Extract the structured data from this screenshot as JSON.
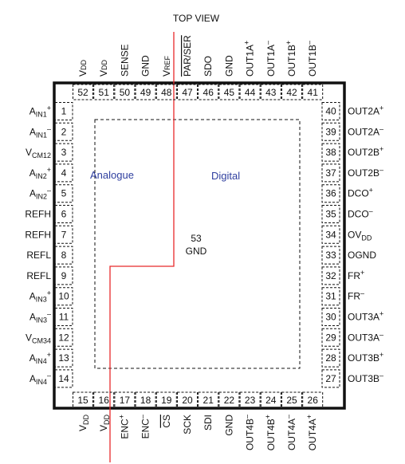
{
  "title": "TOP VIEW",
  "zones": {
    "analogue": "Analogue",
    "digital": "Digital",
    "zone_color": "#2f3f9f",
    "divider_color": "#e8292b"
  },
  "center_pad": {
    "number": "53",
    "name": "GND"
  },
  "pins": {
    "left": [
      {
        "n": "1",
        "base": "A",
        "sub": "IN1",
        "sup": "+"
      },
      {
        "n": "2",
        "base": "A",
        "sub": "IN1",
        "sup": "–"
      },
      {
        "n": "3",
        "base": "V",
        "sub": "CM12",
        "sup": ""
      },
      {
        "n": "4",
        "base": "A",
        "sub": "IN2",
        "sup": "+"
      },
      {
        "n": "5",
        "base": "A",
        "sub": "IN2",
        "sup": "–"
      },
      {
        "n": "6",
        "base": "REFH",
        "sub": "",
        "sup": ""
      },
      {
        "n": "7",
        "base": "REFH",
        "sub": "",
        "sup": ""
      },
      {
        "n": "8",
        "base": "REFL",
        "sub": "",
        "sup": ""
      },
      {
        "n": "9",
        "base": "REFL",
        "sub": "",
        "sup": ""
      },
      {
        "n": "10",
        "base": "A",
        "sub": "IN3",
        "sup": "+"
      },
      {
        "n": "11",
        "base": "A",
        "sub": "IN3",
        "sup": "–"
      },
      {
        "n": "12",
        "base": "V",
        "sub": "CM34",
        "sup": ""
      },
      {
        "n": "13",
        "base": "A",
        "sub": "IN4",
        "sup": "+"
      },
      {
        "n": "14",
        "base": "A",
        "sub": "IN4",
        "sup": "–"
      }
    ],
    "right": [
      {
        "n": "40",
        "base": "OUT2A",
        "sub": "",
        "sup": "+"
      },
      {
        "n": "39",
        "base": "OUT2A",
        "sub": "",
        "sup": "–"
      },
      {
        "n": "38",
        "base": "OUT2B",
        "sub": "",
        "sup": "+"
      },
      {
        "n": "37",
        "base": "OUT2B",
        "sub": "",
        "sup": "–"
      },
      {
        "n": "36",
        "base": "DCO",
        "sub": "",
        "sup": "+"
      },
      {
        "n": "35",
        "base": "DCO",
        "sub": "",
        "sup": "–"
      },
      {
        "n": "34",
        "base": "OV",
        "sub": "DD",
        "sup": ""
      },
      {
        "n": "33",
        "base": "OGND",
        "sub": "",
        "sup": ""
      },
      {
        "n": "32",
        "base": "FR",
        "sub": "",
        "sup": "+"
      },
      {
        "n": "31",
        "base": "FR",
        "sub": "",
        "sup": "–"
      },
      {
        "n": "30",
        "base": "OUT3A",
        "sub": "",
        "sup": "+"
      },
      {
        "n": "29",
        "base": "OUT3A",
        "sub": "",
        "sup": "–"
      },
      {
        "n": "28",
        "base": "OUT3B",
        "sub": "",
        "sup": "+"
      },
      {
        "n": "27",
        "base": "OUT3B",
        "sub": "",
        "sup": "–"
      }
    ],
    "top": [
      {
        "n": "52",
        "base": "V",
        "sub": "DD",
        "sup": "",
        "over": false
      },
      {
        "n": "51",
        "base": "V",
        "sub": "DD",
        "sup": "",
        "over": false
      },
      {
        "n": "50",
        "base": "SENSE",
        "sub": "",
        "sup": "",
        "over": false
      },
      {
        "n": "49",
        "base": "GND",
        "sub": "",
        "sup": "",
        "over": false
      },
      {
        "n": "48",
        "base": "V",
        "sub": "REF",
        "sup": "",
        "over": false
      },
      {
        "n": "47",
        "base": "PAR/SER",
        "sub": "",
        "sup": "",
        "over": true
      },
      {
        "n": "46",
        "base": "SDO",
        "sub": "",
        "sup": "",
        "over": false
      },
      {
        "n": "45",
        "base": "GND",
        "sub": "",
        "sup": "",
        "over": false
      },
      {
        "n": "44",
        "base": "OUT1A",
        "sub": "",
        "sup": "+",
        "over": false
      },
      {
        "n": "43",
        "base": "OUT1A",
        "sub": "",
        "sup": "–",
        "over": false
      },
      {
        "n": "42",
        "base": "OUT1B",
        "sub": "",
        "sup": "+",
        "over": false
      },
      {
        "n": "41",
        "base": "OUT1B",
        "sub": "",
        "sup": "–",
        "over": false
      }
    ],
    "bottom": [
      {
        "n": "15",
        "base": "V",
        "sub": "DD",
        "sup": "",
        "over": false
      },
      {
        "n": "16",
        "base": "V",
        "sub": "DD",
        "sup": "",
        "over": false
      },
      {
        "n": "17",
        "base": "ENC",
        "sub": "",
        "sup": "+",
        "over": false
      },
      {
        "n": "18",
        "base": "ENC",
        "sub": "",
        "sup": "–",
        "over": false
      },
      {
        "n": "19",
        "base": "CS",
        "sub": "",
        "sup": "",
        "over": true
      },
      {
        "n": "20",
        "base": "SCK",
        "sub": "",
        "sup": "",
        "over": false
      },
      {
        "n": "21",
        "base": "SDI",
        "sub": "",
        "sup": "",
        "over": false
      },
      {
        "n": "22",
        "base": "GND",
        "sub": "",
        "sup": "",
        "over": false
      },
      {
        "n": "23",
        "base": "OUT4B",
        "sub": "",
        "sup": "–",
        "over": false
      },
      {
        "n": "24",
        "base": "OUT4B",
        "sub": "",
        "sup": "+",
        "over": false
      },
      {
        "n": "25",
        "base": "OUT4A",
        "sub": "",
        "sup": "–",
        "over": false
      },
      {
        "n": "26",
        "base": "OUT4A",
        "sub": "",
        "sup": "+",
        "over": false
      }
    ]
  }
}
